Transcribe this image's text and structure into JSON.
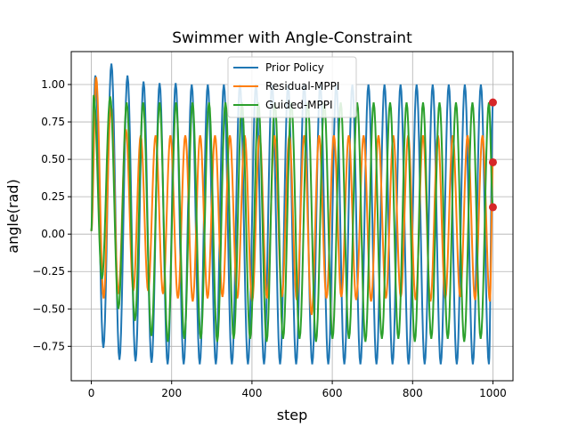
{
  "chart_data": {
    "type": "line",
    "title": "Swimmer with Angle-Constraint",
    "xlabel": "step",
    "ylabel": "angle(rad)",
    "xlim": [
      -50,
      1050
    ],
    "ylim": [
      -0.98,
      1.22
    ],
    "xticks": [
      0,
      200,
      400,
      600,
      800,
      1000
    ],
    "yticks": [
      -0.75,
      -0.5,
      -0.25,
      0.0,
      0.25,
      0.5,
      0.75,
      1.0
    ],
    "xtick_labels": [
      "0",
      "200",
      "400",
      "600",
      "800",
      "1000"
    ],
    "ytick_labels": [
      "−0.75",
      "−0.50",
      "−0.25",
      "0.00",
      "0.25",
      "0.50",
      "0.75",
      "1.00"
    ],
    "grid": true,
    "legend_position": "top-center",
    "series": [
      {
        "name": "Prior Policy",
        "color": "#1f77b4",
        "period": 40,
        "phase": 10,
        "peaks": [
          1.06,
          1.14,
          1.06,
          1.02,
          1.01,
          1.01,
          1.0,
          1.0,
          1.0,
          1.0,
          1.0,
          1.0,
          1.0,
          1.0,
          1.0,
          1.0,
          1.0,
          1.0,
          1.0,
          1.0,
          1.0,
          1.0,
          1.0,
          1.0,
          1.0,
          1.0
        ],
        "troughs": [
          -0.76,
          -0.84,
          -0.85,
          -0.86,
          -0.87,
          -0.87,
          -0.87,
          -0.87,
          -0.87,
          -0.87,
          -0.87,
          -0.87,
          -0.87,
          -0.87,
          -0.87,
          -0.87,
          -0.87,
          -0.87,
          -0.87,
          -0.87,
          -0.87,
          -0.87,
          -0.87,
          -0.87,
          -0.87,
          -0.87
        ],
        "x": [
          0,
          1000
        ],
        "start": 0.02,
        "end": 0.88
      },
      {
        "name": "Residual-MPPI",
        "color": "#ff7f0e",
        "period": 37,
        "phase": 12,
        "peaks": [
          1.05,
          0.86,
          0.7,
          0.66,
          0.66,
          0.66,
          0.66,
          0.66,
          0.66,
          0.66,
          0.66,
          0.66,
          0.66,
          0.66,
          0.66,
          0.66,
          0.66,
          0.66,
          0.66,
          0.66,
          0.66,
          0.66,
          0.66,
          0.66,
          0.66,
          0.66,
          0.66,
          0.66
        ],
        "troughs": [
          -0.43,
          -0.4,
          -0.38,
          -0.38,
          -0.4,
          -0.43,
          -0.45,
          -0.43,
          -0.42,
          -0.43,
          -0.45,
          -0.43,
          -0.42,
          -0.44,
          -0.54,
          -0.43,
          -0.42,
          -0.44,
          -0.45,
          -0.43,
          -0.42,
          -0.44,
          -0.45,
          -0.43,
          -0.42,
          -0.44,
          -0.45,
          -0.43
        ],
        "x": [
          0,
          1000
        ],
        "start": 0.02,
        "end": 0.48
      },
      {
        "name": "Guided-MPPI",
        "color": "#2ca02c",
        "period": 41,
        "phase": 6,
        "peaks": [
          0.93,
          0.92,
          0.88,
          0.88,
          0.88,
          0.88,
          0.88,
          0.88,
          0.88,
          0.88,
          0.88,
          0.88,
          0.88,
          0.88,
          0.88,
          0.88,
          0.88,
          0.88,
          0.88,
          0.88,
          0.88,
          0.88,
          0.88,
          0.88,
          0.88,
          0.88
        ],
        "troughs": [
          -0.3,
          -0.5,
          -0.58,
          -0.68,
          -0.72,
          -0.7,
          -0.7,
          -0.72,
          -0.7,
          -0.7,
          -0.72,
          -0.7,
          -0.7,
          -0.72,
          -0.7,
          -0.7,
          -0.72,
          -0.7,
          -0.7,
          -0.72,
          -0.7,
          -0.7,
          -0.72,
          -0.7,
          -0.7,
          -0.78
        ],
        "x": [
          0,
          1000
        ],
        "start": 0.02,
        "end": 0.18
      }
    ],
    "endpoint_markers": [
      {
        "x": 1000,
        "y": 0.88,
        "color": "#d62728"
      },
      {
        "x": 1000,
        "y": 0.48,
        "color": "#d62728"
      },
      {
        "x": 1000,
        "y": 0.18,
        "color": "#d62728"
      }
    ]
  }
}
